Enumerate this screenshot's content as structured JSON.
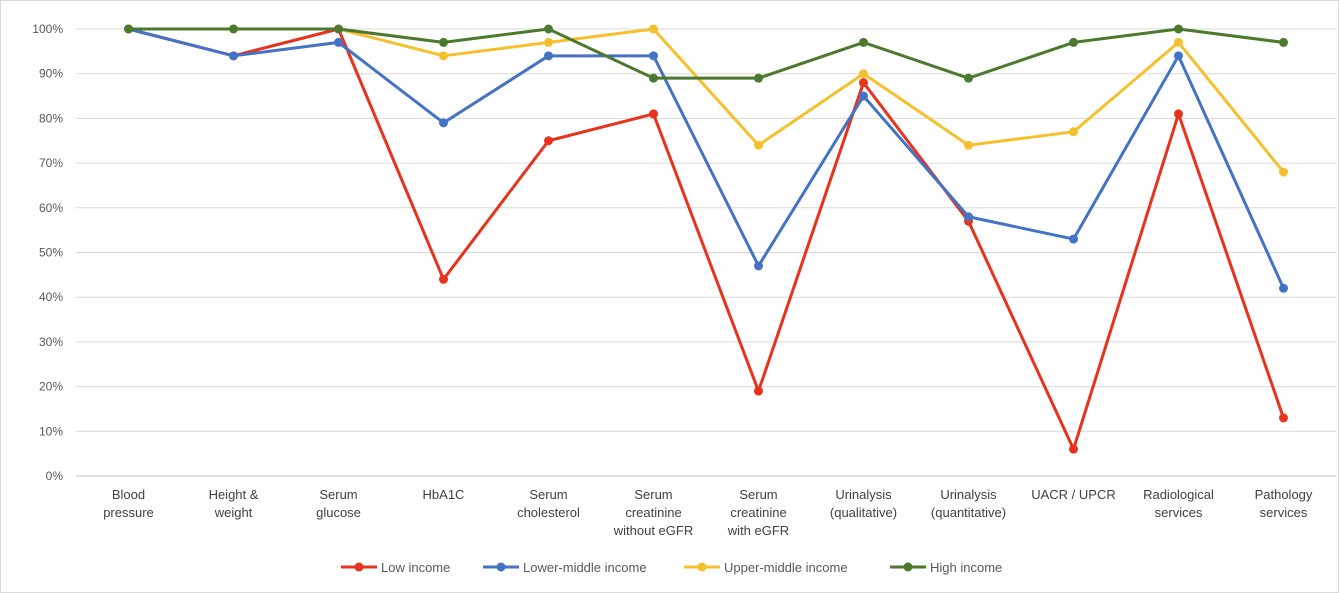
{
  "chart_data": {
    "type": "line",
    "categories": [
      [
        "Blood",
        "pressure"
      ],
      [
        "Height &",
        "weight"
      ],
      [
        "Serum",
        "glucose"
      ],
      [
        "HbA1C"
      ],
      [
        "Serum",
        "cholesterol"
      ],
      [
        "Serum",
        "creatinine",
        "without eGFR"
      ],
      [
        "Serum",
        "creatinine",
        "with eGFR"
      ],
      [
        "Urinalysis",
        "(qualitative)"
      ],
      [
        "Urinalysis",
        "(quantitative)"
      ],
      [
        "UACR / UPCR"
      ],
      [
        "Radiological",
        "services"
      ],
      [
        "Pathology",
        "services"
      ]
    ],
    "ylim": [
      0,
      100
    ],
    "yticks": [
      "0%",
      "10%",
      "20%",
      "30%",
      "40%",
      "50%",
      "60%",
      "70%",
      "80%",
      "90%",
      "100%"
    ],
    "grid": true,
    "legend_position": "bottom",
    "series": [
      {
        "name": "Low income",
        "color": "#e8321c",
        "values": [
          100,
          94,
          100,
          44,
          75,
          81,
          19,
          88,
          57,
          6,
          81,
          13
        ]
      },
      {
        "name": "Lower-middle income",
        "color": "#4472c4",
        "values": [
          100,
          94,
          97,
          79,
          94,
          94,
          47,
          85,
          58,
          53,
          94,
          42
        ]
      },
      {
        "name": "Upper-middle income",
        "color": "#f5c02c",
        "values": [
          100,
          100,
          100,
          94,
          97,
          100,
          74,
          90,
          74,
          77,
          97,
          68
        ]
      },
      {
        "name": "High income",
        "color": "#4b7a2e",
        "values": [
          100,
          100,
          100,
          97,
          100,
          89,
          89,
          97,
          89,
          97,
          100,
          97
        ]
      }
    ]
  }
}
